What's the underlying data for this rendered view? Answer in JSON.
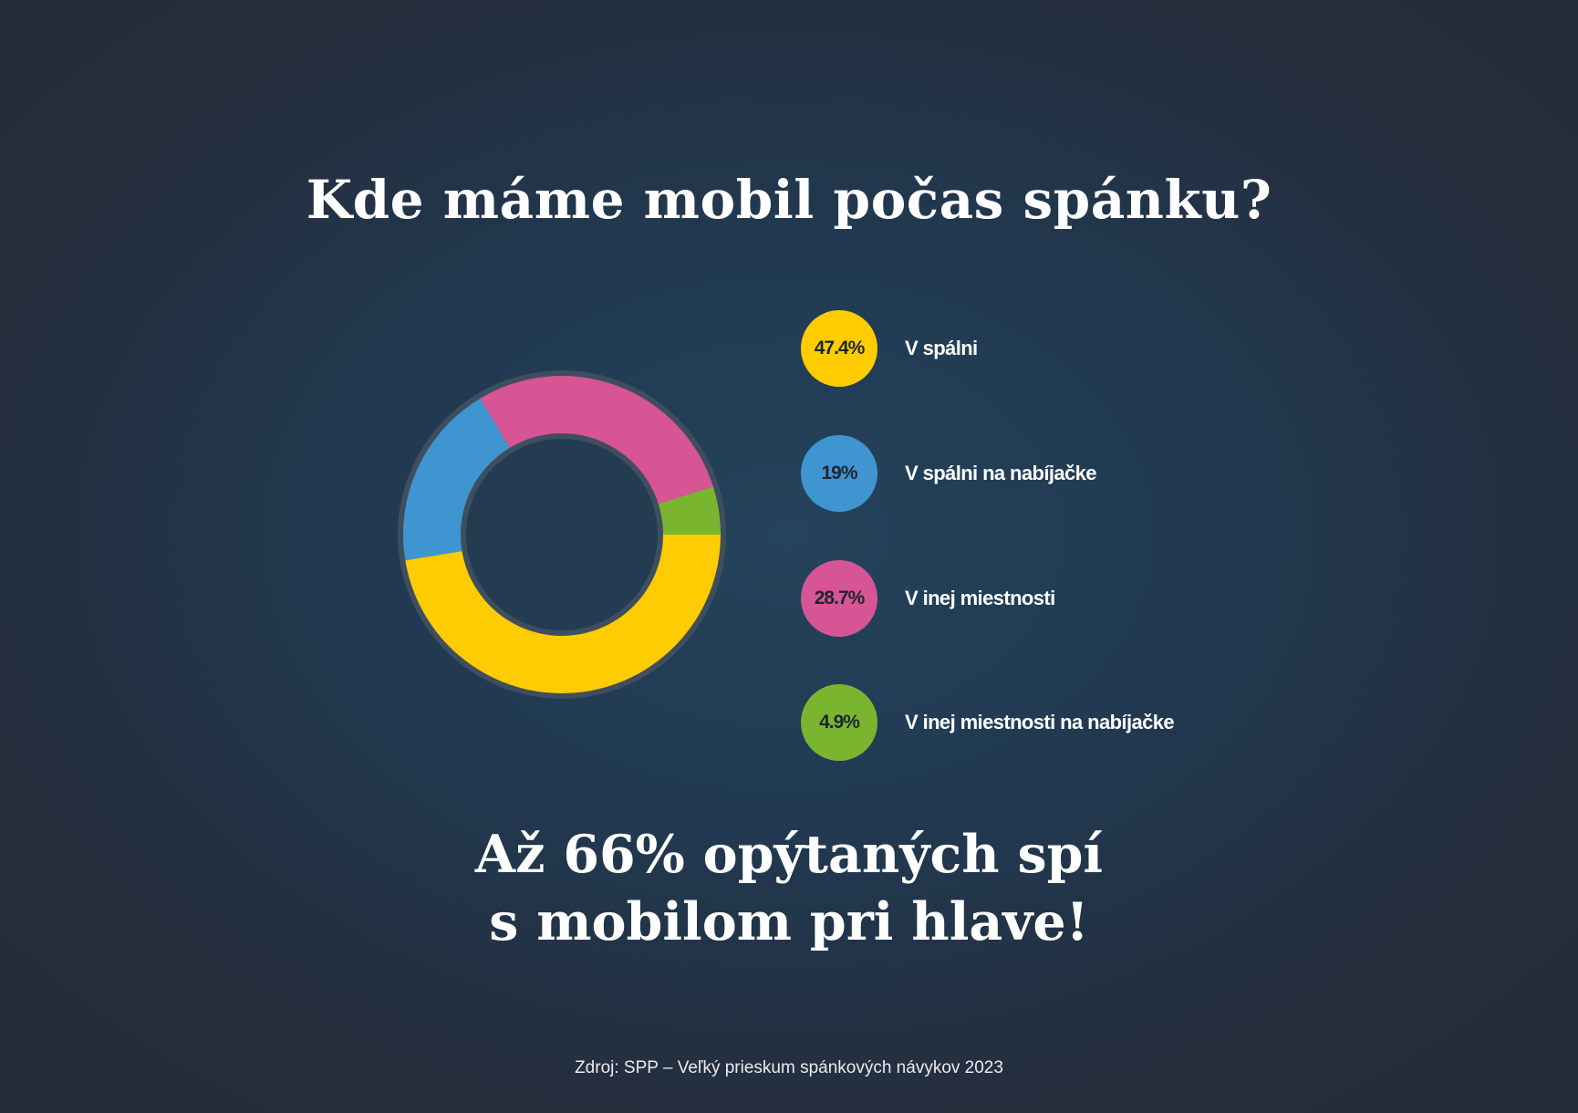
{
  "chart_data": {
    "type": "pie",
    "title": "Kde máme mobil počas spánku?",
    "slices": [
      {
        "label": "V spálni",
        "value": 47.4,
        "display": "47.4%",
        "color": "#fecc00"
      },
      {
        "label": "V spálni na nabíjačke",
        "value": 19,
        "display": "19%",
        "color": "#3f95d0"
      },
      {
        "label": "V inej miestnosti",
        "value": 28.7,
        "display": "28.7%",
        "color": "#d75595"
      },
      {
        "label": "V inej miestnosti na nabíjačke",
        "value": 4.9,
        "display": "4.9%",
        "color": "#7ab52f"
      }
    ],
    "legend_position": "right"
  },
  "headline": {
    "line1": "Až 66% opýtaných spí",
    "line2": "s mobilom pri hlave!"
  },
  "source": "Zdroj: SPP – Veľký prieskum spánkových návykov 2023"
}
